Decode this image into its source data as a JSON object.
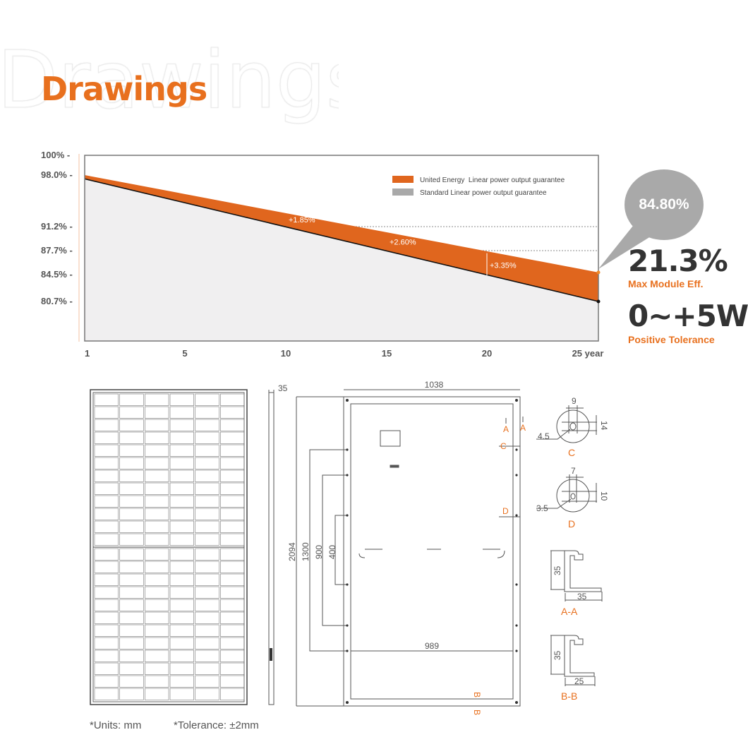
{
  "watermark": "Drawings",
  "title": "Drawings",
  "chart_data": {
    "type": "area",
    "x_ticks": [
      "1",
      "5",
      "10",
      "15",
      "20",
      "25 year"
    ],
    "x_values": [
      1,
      5,
      10,
      15,
      20,
      25
    ],
    "y_ticks": [
      "100%",
      "98.0%",
      "91.2%",
      "87.7%",
      "84.5%",
      "80.7%"
    ],
    "y_values": [
      100,
      98.0,
      91.2,
      87.7,
      84.5,
      80.7
    ],
    "series": [
      {
        "name": "United Energy  Linear power output guarantee",
        "color": "#e0661e",
        "x": [
          1,
          25
        ],
        "y": [
          98.0,
          84.8
        ]
      },
      {
        "name": "Standard Linear power output guarantee",
        "color": "#a9a9a9",
        "x": [
          1,
          25
        ],
        "y": [
          97.5,
          80.7
        ]
      }
    ],
    "annotations": [
      {
        "text": "+1.85%",
        "x": 10
      },
      {
        "text": "+2.60%",
        "x": 15
      },
      {
        "text": "+3.35%",
        "x": 20
      }
    ],
    "grid": "dotted",
    "legend": "top-right"
  },
  "callout": {
    "value": "84.80%"
  },
  "specs": [
    {
      "value": "21.3%",
      "label": "Max Module Eff."
    },
    {
      "value": "0~+5W",
      "label": "Positive Tolerance"
    }
  ],
  "dims": {
    "side": "35",
    "width": "1038",
    "height": "2094",
    "h1300": "1300",
    "h900": "900",
    "h400": "400",
    "w989": "989",
    "a": "A",
    "b": "B",
    "c": "C",
    "d": "D",
    "c_w": "9",
    "c_h": "14",
    "c_d": "4.5",
    "d_w": "7",
    "d_h": "10",
    "d_d": "3.5",
    "aa_h": "35",
    "aa_w": "35",
    "aa": "A-A",
    "bb_h": "35",
    "bb_w": "25",
    "bb": "B-B"
  },
  "footer": {
    "units": "*Units: mm",
    "tolerance": "*Tolerance: ±2mm"
  }
}
